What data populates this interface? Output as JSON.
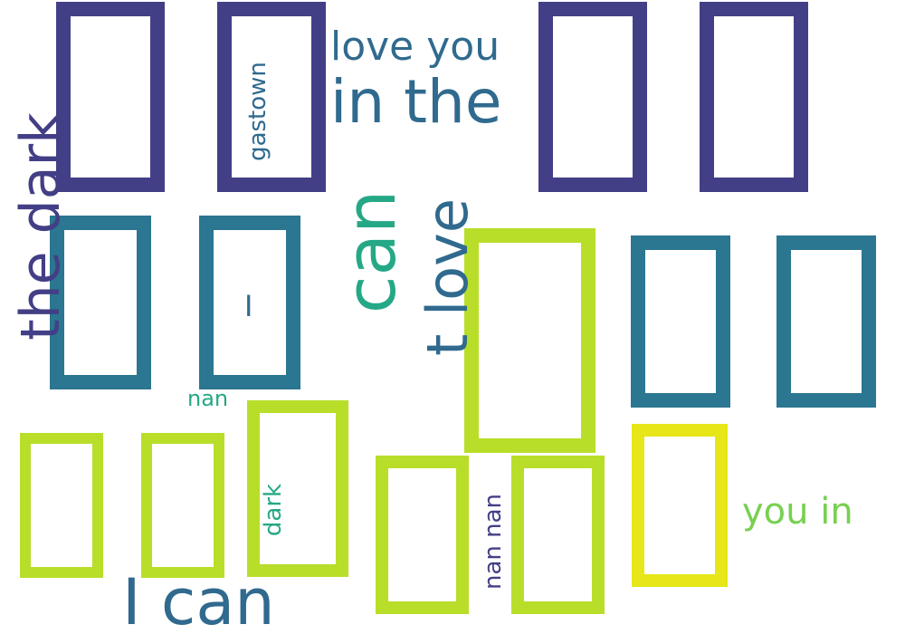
{
  "palette": {
    "background": "#ffffff",
    "indigo": "#433f86",
    "teal": "#2b7690",
    "blue": "#306a8e",
    "green": "#25a886",
    "lime": "#b8de29",
    "yellow": "#e6e619",
    "purple": "#440154",
    "lightgreen": "#78d052"
  },
  "words": [
    {
      "text": "love you",
      "color": "#306a8e"
    },
    {
      "text": "in the",
      "color": "#306a8e"
    },
    {
      "text": "the dark",
      "color": "#433f86"
    },
    {
      "text": "can",
      "color": "#25a886"
    },
    {
      "text": "t love",
      "color": "#306a8e"
    },
    {
      "text": "I can",
      "color": "#306a8e"
    },
    {
      "text": "gastown",
      "color": "#306a8e"
    },
    {
      "text": "dark",
      "color": "#25a886"
    },
    {
      "text": "nan nan",
      "color": "#433f86"
    },
    {
      "text": "nan",
      "color": "#25a886"
    },
    {
      "text": "you in",
      "color": "#78d052"
    },
    {
      "text": "I",
      "color": "#306a8e"
    }
  ]
}
